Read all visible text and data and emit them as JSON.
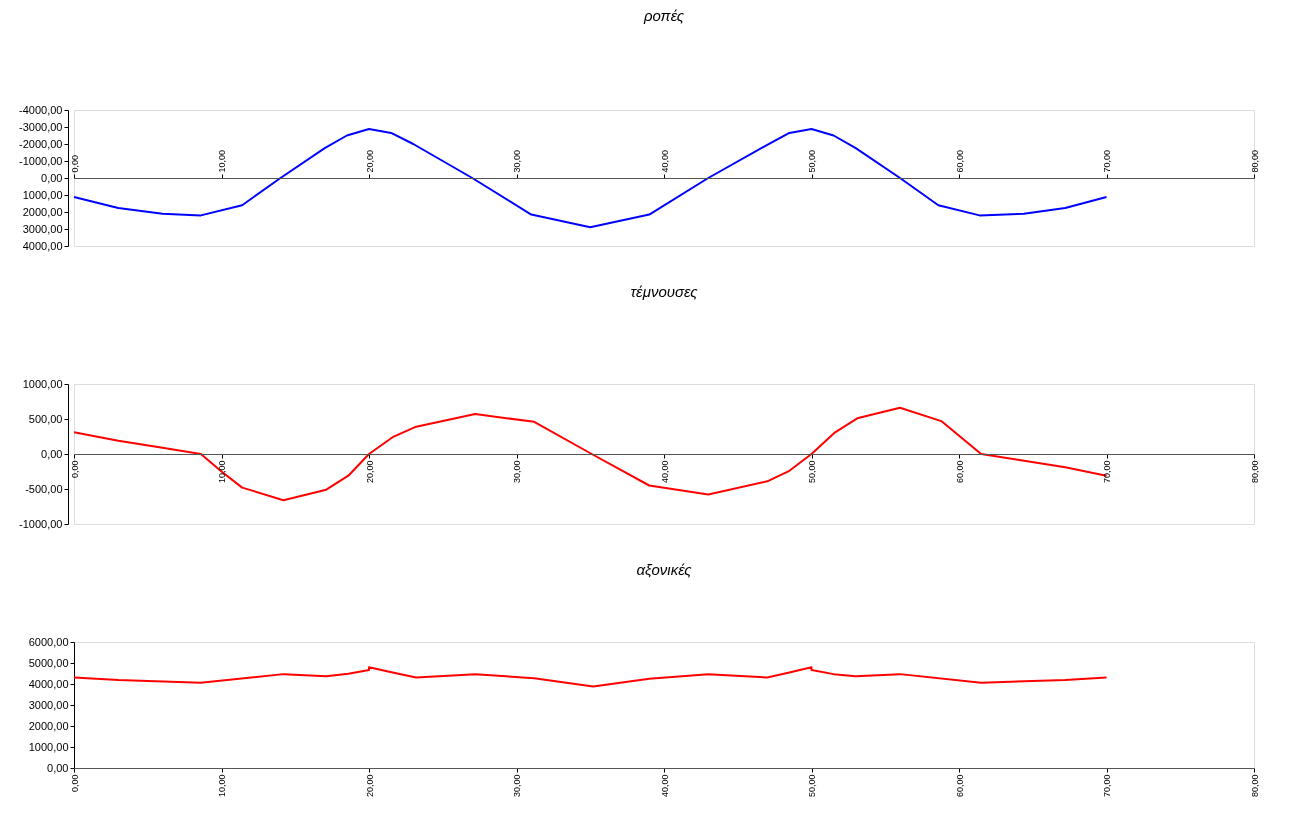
{
  "chart_data": [
    {
      "type": "line",
      "title": "ροπές",
      "x": [
        0,
        3,
        6,
        8.6,
        11.4,
        14,
        17,
        18.5,
        20,
        21.5,
        23,
        27,
        31,
        35,
        39,
        43,
        47,
        48.5,
        50,
        51.5,
        53,
        56,
        58.6,
        61.4,
        64.4,
        67.2,
        70
      ],
      "series": [
        {
          "color": "#0000ff",
          "values": [
            1120,
            1760,
            2100,
            2200,
            1600,
            0,
            -1760,
            -2500,
            -2880,
            -2650,
            -2000,
            0,
            2150,
            2900,
            2150,
            0,
            -1950,
            -2650,
            -2880,
            -2500,
            -1760,
            0,
            1600,
            2200,
            2100,
            1760,
            1120
          ]
        }
      ],
      "xlim": [
        0,
        80
      ],
      "xticks": [
        {
          "value": 0,
          "label": "0,00"
        },
        {
          "value": 10,
          "label": "10,00"
        },
        {
          "value": 20,
          "label": "20,00"
        },
        {
          "value": 30,
          "label": "30,00"
        },
        {
          "value": 40,
          "label": "40,00"
        },
        {
          "value": 50,
          "label": "50,00"
        },
        {
          "value": 60,
          "label": "60,00"
        },
        {
          "value": 70,
          "label": "70,00"
        },
        {
          "value": 80,
          "label": "80,00"
        }
      ],
      "ylim": [
        4000,
        -4000
      ],
      "yticks": [
        {
          "value": -4000,
          "label": "-4000,00"
        },
        {
          "value": -3000,
          "label": "-3000,00"
        },
        {
          "value": -2000,
          "label": "-2000,00"
        },
        {
          "value": -1000,
          "label": "-1000,00"
        },
        {
          "value": 0,
          "label": "0,00"
        },
        {
          "value": 1000,
          "label": "1000,00"
        },
        {
          "value": 2000,
          "label": "2000,00"
        },
        {
          "value": 3000,
          "label": "3000,00"
        },
        {
          "value": 4000,
          "label": "4000,00"
        }
      ],
      "grid": false
    },
    {
      "type": "line",
      "title": "τέμνουσες",
      "x": [
        0,
        3,
        6,
        8.6,
        10,
        11.4,
        14.2,
        17.1,
        18.6,
        20,
        21.6,
        23.2,
        27.2,
        31.2,
        35.1,
        39,
        43,
        47,
        48.5,
        50,
        51.6,
        53.1,
        56,
        58.8,
        61.5,
        64.2,
        67.2,
        70
      ],
      "series": [
        {
          "color": "#ff0000",
          "values": [
            310,
            190,
            90,
            0,
            -250,
            -480,
            -660,
            -510,
            -310,
            0,
            240,
            390,
            570,
            460,
            0,
            -450,
            -580,
            -390,
            -240,
            0,
            310,
            510,
            660,
            470,
            0,
            -90,
            -190,
            -310
          ]
        }
      ],
      "xlim": [
        0,
        80
      ],
      "xticks": [
        {
          "value": 0,
          "label": "0,00"
        },
        {
          "value": 10,
          "label": "10,00"
        },
        {
          "value": 20,
          "label": "20,00"
        },
        {
          "value": 30,
          "label": "30,00"
        },
        {
          "value": 40,
          "label": "40,00"
        },
        {
          "value": 50,
          "label": "50,00"
        },
        {
          "value": 60,
          "label": "60,00"
        },
        {
          "value": 70,
          "label": "70,00"
        },
        {
          "value": 80,
          "label": "80,00"
        }
      ],
      "ylim": [
        -1000,
        1000
      ],
      "yticks": [
        {
          "value": -1000,
          "label": "-1000,00"
        },
        {
          "value": -500,
          "label": "-500,00"
        },
        {
          "value": 0,
          "label": "0,00"
        },
        {
          "value": 500,
          "label": "500,00"
        },
        {
          "value": 1000,
          "label": "1000,00"
        }
      ],
      "grid": false
    },
    {
      "type": "line",
      "title": "αξονικές",
      "x": [
        0,
        3,
        8.6,
        14.2,
        17.1,
        18.6,
        20,
        20,
        21.6,
        23.2,
        27.2,
        31.2,
        35.2,
        39,
        43,
        47,
        48.5,
        50,
        50,
        51.5,
        53,
        56,
        61.5,
        67.2,
        70
      ],
      "series": [
        {
          "color": "#ff0000",
          "values": [
            4310,
            4190,
            4060,
            4470,
            4370,
            4490,
            4670,
            4800,
            4550,
            4310,
            4470,
            4270,
            3880,
            4250,
            4470,
            4310,
            4550,
            4800,
            4670,
            4470,
            4370,
            4470,
            4060,
            4190,
            4310
          ]
        }
      ],
      "xlim": [
        0,
        80
      ],
      "xticks": [
        {
          "value": 0,
          "label": "0,00"
        },
        {
          "value": 10,
          "label": "10,00"
        },
        {
          "value": 20,
          "label": "20,00"
        },
        {
          "value": 30,
          "label": "30,00"
        },
        {
          "value": 40,
          "label": "40,00"
        },
        {
          "value": 50,
          "label": "50,00"
        },
        {
          "value": 60,
          "label": "60,00"
        },
        {
          "value": 70,
          "label": "70,00"
        },
        {
          "value": 80,
          "label": "80,00"
        }
      ],
      "ylim": [
        0,
        6000
      ],
      "yticks": [
        {
          "value": 0,
          "label": "0,00"
        },
        {
          "value": 1000,
          "label": "1000,00"
        },
        {
          "value": 2000,
          "label": "2000,00"
        },
        {
          "value": 3000,
          "label": "3000,00"
        },
        {
          "value": 4000,
          "label": "4000,00"
        },
        {
          "value": 5000,
          "label": "5000,00"
        },
        {
          "value": 6000,
          "label": "6000,00"
        }
      ],
      "grid": false
    }
  ]
}
